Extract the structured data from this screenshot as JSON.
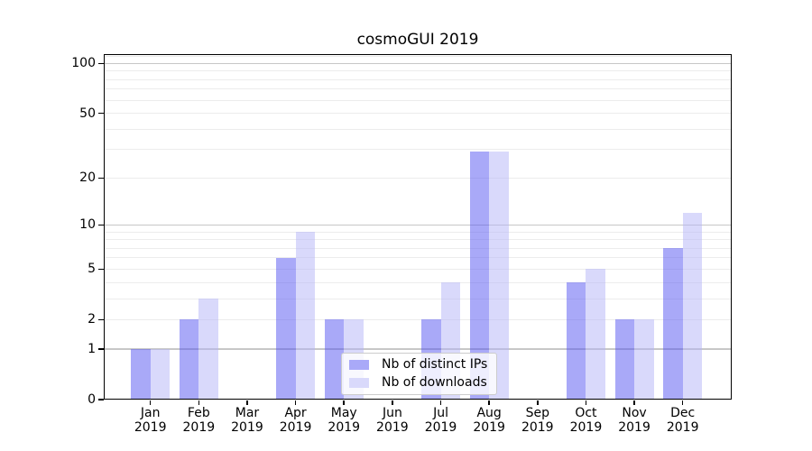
{
  "chart_data": {
    "type": "bar",
    "title": "cosmoGUI 2019",
    "categories": [
      "Jan 2019",
      "Feb 2019",
      "Mar 2019",
      "Apr 2019",
      "May 2019",
      "Jun 2019",
      "Jul 2019",
      "Aug 2019",
      "Sep 2019",
      "Oct 2019",
      "Nov 2019",
      "Dec 2019"
    ],
    "series": [
      {
        "name": "Nb of distinct IPs",
        "color": "#a9a9f8",
        "values": [
          1,
          2,
          0,
          6,
          2,
          0,
          2,
          29,
          0,
          4,
          2,
          7
        ]
      },
      {
        "name": "Nb of downloads",
        "color": "#d9d9fb",
        "values": [
          1,
          3,
          0,
          9,
          2,
          0,
          4,
          29,
          0,
          5,
          2,
          12
        ]
      }
    ],
    "y_axis": {
      "scale": "log1p",
      "tick_labels": [
        0,
        1,
        2,
        5,
        10,
        20,
        50,
        100
      ],
      "range": [
        0,
        114
      ],
      "major_gridlines": [
        1,
        10,
        100
      ],
      "minor_gridlines": [
        2,
        3,
        4,
        5,
        6,
        7,
        8,
        9,
        20,
        30,
        40,
        50,
        60,
        70,
        80,
        90,
        110
      ]
    },
    "grid": {
      "on": true,
      "major_color": "#c7c7c7",
      "minor_color": "#ececec"
    },
    "legend": {
      "position": "lower-center",
      "background": "#ffffff",
      "border_color": "#cccccc"
    },
    "axis_color": "#000000",
    "text_color": "#000000",
    "xlabel": "",
    "ylabel": ""
  }
}
